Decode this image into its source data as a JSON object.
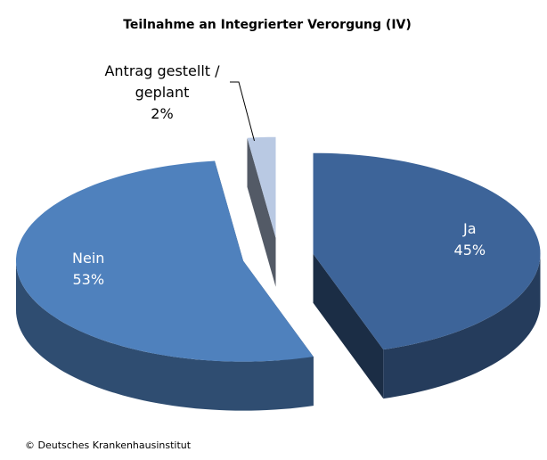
{
  "chart_data": {
    "type": "pie3d",
    "title": "Teilnahme an Integrierter Verorgung (IV)",
    "categories": [
      "Ja",
      "Nein",
      "Antrag gestellt / geplant"
    ],
    "values": [
      45,
      53,
      2
    ],
    "value_labels": [
      "45%",
      "53%",
      "2%"
    ],
    "colors": [
      "#3d6499",
      "#4f81bd",
      "#b9c9e3"
    ],
    "source": "© Deutsches  Krankenhausinstitut"
  }
}
